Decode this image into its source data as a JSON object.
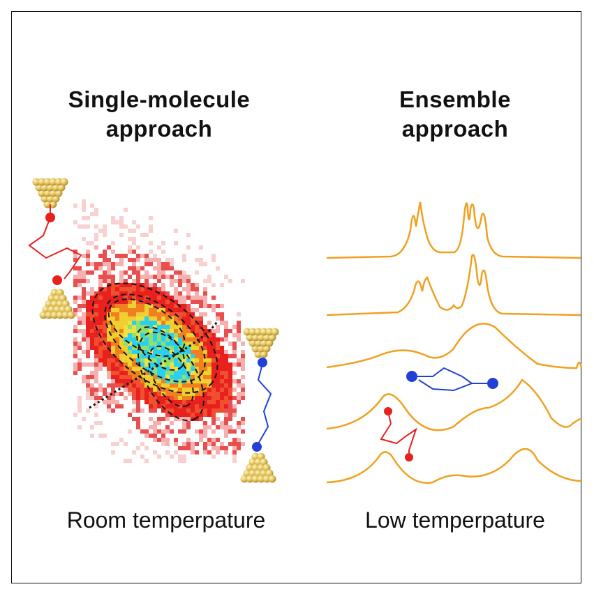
{
  "left_panel": {
    "heading_line1": "Single-molecule",
    "heading_line2": "approach",
    "caption": "Room temperpature"
  },
  "right_panel": {
    "heading_line1": "Ensemble",
    "heading_line2": "approach",
    "caption": "Low temperpature"
  },
  "colors": {
    "frame": "#111111",
    "gold": "#e3c25a",
    "trace": "#f0a020",
    "axial_conformer": "#e8201e",
    "equatorial_conformer": "#2040d8",
    "heatmap_low": "#f6c0c0",
    "heatmap_mid": "#e8201e",
    "heatmap_core": "#2ad0f0"
  }
}
